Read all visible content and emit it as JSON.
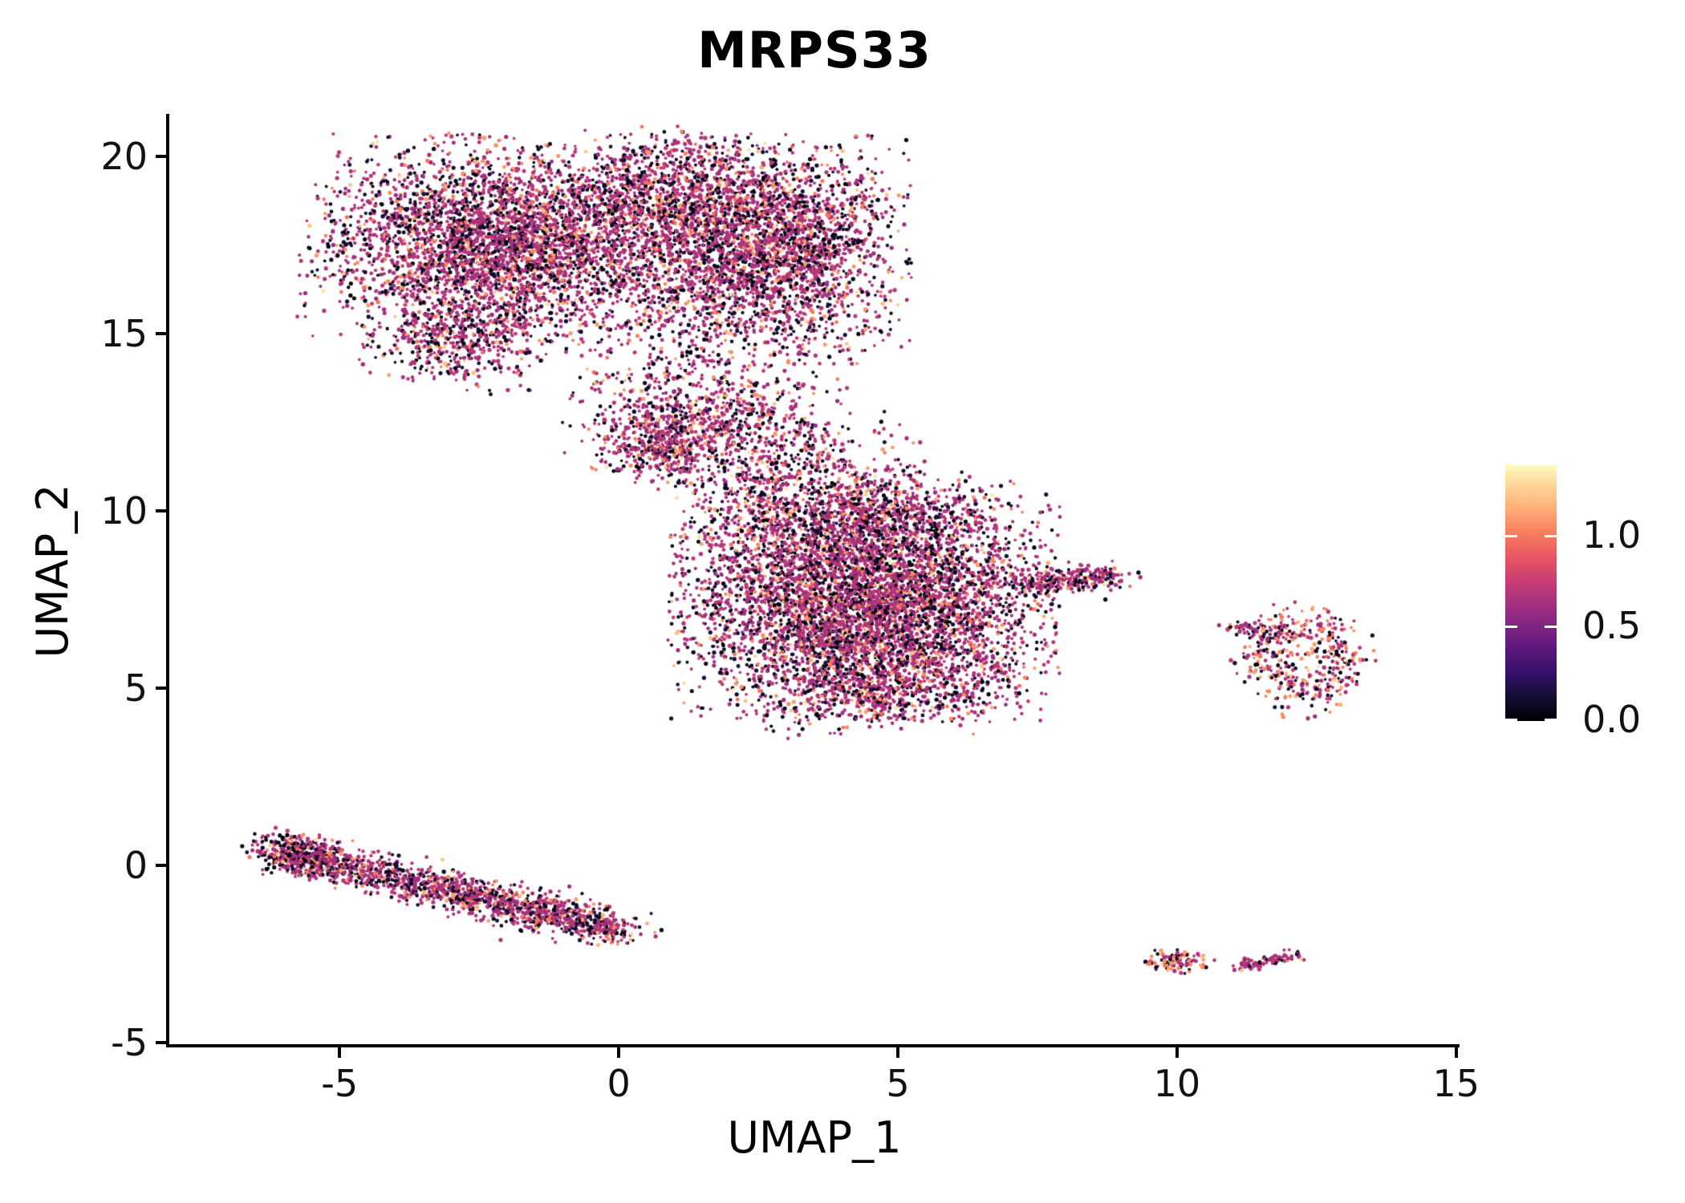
{
  "title": "MRPS33",
  "axes": {
    "x_label": "UMAP_1",
    "y_label": "UMAP_2",
    "x_ticks": [
      {
        "label": "-5",
        "value": -5
      },
      {
        "label": "0",
        "value": 0
      },
      {
        "label": "5",
        "value": 5
      },
      {
        "label": "10",
        "value": 10
      },
      {
        "label": "15",
        "value": 15
      }
    ],
    "y_ticks": [
      {
        "label": "-5",
        "value": -5
      },
      {
        "label": "0",
        "value": 0
      },
      {
        "label": "5",
        "value": 5
      },
      {
        "label": "10",
        "value": 10
      },
      {
        "label": "15",
        "value": 15
      },
      {
        "label": "20",
        "value": 20
      }
    ]
  },
  "colorbar": {
    "ticks": [
      {
        "label": "1.0",
        "frac_from_top": 0.275
      },
      {
        "label": "0.5",
        "frac_from_top": 0.628
      },
      {
        "label": "0.0",
        "frac_from_top": 0.994
      }
    ],
    "gradient_stops_bottom_to_top": [
      "#000004",
      "#120d31",
      "#331068",
      "#5a167e",
      "#7d2482",
      "#a3307e",
      "#c83e73",
      "#e95462",
      "#f97b5d",
      "#fea973",
      "#fed395",
      "#fcfdbf"
    ]
  },
  "chart_data": {
    "type": "scatter",
    "title": "MRPS33",
    "xlabel": "UMAP_1",
    "ylabel": "UMAP_2",
    "xlim": [
      -8.05,
      15.06
    ],
    "ylim": [
      -5.14,
      21.36
    ],
    "grid": false,
    "legend": "color gradient bar, right side, expression 0.0 to ~1.4",
    "description": "Seurat-style UMAP feature plot of MRPS33 expression; ~19000 cells in five cluster groups, most cells magenta (mid expression) with black (zero) and orange/cream (high) speckle",
    "point_radius_px": [
      1.8,
      2.7
    ],
    "palettes": {
      "std": {
        "magenta": 0.57,
        "black": 0.29,
        "orange": 0.11,
        "light": 0.03
      },
      "orange_rich": {
        "magenta": 0.42,
        "black": 0.22,
        "orange": 0.29,
        "light": 0.07
      },
      "magenta_heavy": {
        "magenta": 0.74,
        "black": 0.16,
        "orange": 0.08,
        "light": 0.02
      }
    },
    "shades": {
      "magenta": [
        "#b13578",
        "#a73079",
        "#bd3a74",
        "#9e2d7d",
        "#b13578"
      ],
      "black": [
        "#05041a",
        "#0c0926",
        "#150e38",
        "#010108"
      ],
      "orange": [
        "#f7745c",
        "#f9895f",
        "#fa9c6b"
      ],
      "light": [
        "#fcae73",
        "#fdc184",
        "#fee1a6"
      ]
    },
    "clusters": [
      {
        "name": "upper-left-lobe",
        "kind": "blob",
        "cx": -2.1,
        "cy": 17.5,
        "sx": 1.55,
        "sy": 1.32,
        "rot": -8,
        "clamp": 2.3,
        "n": 3800,
        "palette": "std"
      },
      {
        "name": "upper-left-lower-bump",
        "kind": "blob",
        "cx": -2.9,
        "cy": 14.7,
        "sx": 0.75,
        "sy": 0.55,
        "rot": -15,
        "clamp": 2.2,
        "n": 420,
        "palette": "std"
      },
      {
        "name": "upper-right-lobe",
        "kind": "blob",
        "cx": 2.5,
        "cy": 17.4,
        "sx": 1.25,
        "sy": 1.5,
        "rot": 0,
        "clamp": 2.2,
        "n": 3200,
        "palette": "std"
      },
      {
        "name": "upper-top-middle",
        "kind": "blob",
        "cx": 0.7,
        "cy": 19.0,
        "sx": 1.05,
        "sy": 0.85,
        "rot": 0,
        "clamp": 2.2,
        "n": 700,
        "palette": "std"
      },
      {
        "name": "neck",
        "kind": "blob",
        "cx": 1.6,
        "cy": 12.8,
        "sx": 1.15,
        "sy": 1.0,
        "rot": -20,
        "clamp": 2.2,
        "n": 800,
        "palette": "std"
      },
      {
        "name": "neck-dense",
        "kind": "blob",
        "cx": 0.65,
        "cy": 11.9,
        "sx": 0.55,
        "sy": 0.5,
        "rot": 0,
        "clamp": 2.2,
        "n": 330,
        "palette": "std"
      },
      {
        "name": "bridge",
        "kind": "blob",
        "cx": 2.9,
        "cy": 11.3,
        "sx": 1.15,
        "sy": 0.8,
        "rot": 0,
        "clamp": 2.2,
        "n": 420,
        "palette": "std"
      },
      {
        "name": "central-main",
        "kind": "blob",
        "cx": 4.4,
        "cy": 7.4,
        "sx": 1.6,
        "sy": 1.55,
        "rot": 0,
        "clamp": 2.2,
        "n": 5400,
        "palette": "std"
      },
      {
        "name": "central-top",
        "kind": "blob",
        "cx": 4.2,
        "cy": 9.9,
        "sx": 1.3,
        "sy": 0.7,
        "rot": 0,
        "clamp": 2.2,
        "n": 900,
        "palette": "std"
      },
      {
        "name": "central-right-arm",
        "kind": "band",
        "x1": 7.2,
        "y1": 7.95,
        "x2": 8.9,
        "y2": 8.15,
        "sigma": 0.22,
        "n": 280,
        "palette": "std"
      },
      {
        "name": "central-bottom-fringe",
        "kind": "blob",
        "cx": 4.7,
        "cy": 5.0,
        "sx": 1.25,
        "sy": 0.55,
        "rot": 10,
        "clamp": 2.2,
        "n": 520,
        "palette": "std"
      },
      {
        "name": "central-stragglers",
        "kind": "points",
        "palette": "std",
        "pts": [
          [
            6.35,
            3.7,
            "orange"
          ],
          [
            6.12,
            3.95,
            "magenta"
          ],
          [
            5.8,
            4.05,
            "black"
          ]
        ]
      },
      {
        "name": "left-band",
        "kind": "band",
        "x1": -6.1,
        "y1": 0.4,
        "x2": 0.1,
        "y2": -1.85,
        "sigma": 0.33,
        "n": 1600,
        "palette": "std"
      },
      {
        "name": "left-band-head",
        "kind": "blob",
        "cx": -5.75,
        "cy": 0.3,
        "sx": 0.45,
        "sy": 0.32,
        "rot": -15,
        "clamp": 2.0,
        "n": 260,
        "palette": "std"
      },
      {
        "name": "right-ring",
        "kind": "ring",
        "cx": 12.3,
        "cy": 5.8,
        "r": 0.72,
        "sr": 0.24,
        "yscale": 1.3,
        "n": 430,
        "palette": "orange_rich"
      },
      {
        "name": "right-ring-arm",
        "kind": "band",
        "x1": 11.0,
        "y1": 6.75,
        "x2": 11.95,
        "y2": 6.55,
        "sigma": 0.12,
        "n": 60,
        "palette": "std"
      },
      {
        "name": "bottom-right-clump",
        "kind": "blob",
        "cx": 10.0,
        "cy": -2.72,
        "sx": 0.3,
        "sy": 0.19,
        "rot": 0,
        "clamp": 2.0,
        "n": 100,
        "palette": "orange_rich"
      },
      {
        "name": "bottom-right-dot",
        "kind": "points",
        "palette": "std",
        "pts": [
          [
            10.67,
            -2.68,
            "magenta"
          ]
        ]
      },
      {
        "name": "bottom-right-streak",
        "kind": "band",
        "x1": 11.05,
        "y1": -2.9,
        "x2": 12.15,
        "y2": -2.5,
        "sigma": 0.1,
        "n": 90,
        "palette": "magenta_heavy"
      }
    ]
  }
}
